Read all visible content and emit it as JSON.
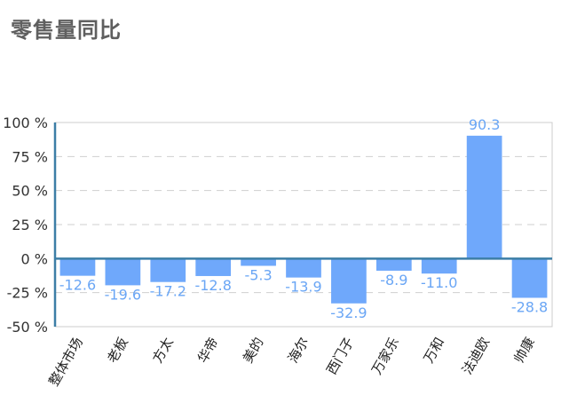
{
  "title": "零售量同比",
  "chart_data": {
    "type": "bar",
    "title": "零售量同比",
    "xlabel": "",
    "ylabel": "",
    "categories": [
      "整体市场",
      "老板",
      "方太",
      "华帝",
      "美的",
      "海尔",
      "西门子",
      "万家乐",
      "万和",
      "法迪欧",
      "帅康"
    ],
    "values": [
      -12.6,
      -19.6,
      -17.2,
      -12.8,
      -5.3,
      -13.9,
      -32.9,
      -8.9,
      -11.0,
      90.3,
      -28.8
    ],
    "value_labels": [
      "-12.6",
      "-19.6",
      "-17.2",
      "-12.8",
      "-5.3",
      "-13.9",
      "-32.9",
      "-8.9",
      "-11.0",
      "90.3",
      "-28.8"
    ],
    "ylim": [
      -50,
      100
    ],
    "yticks": [
      -50,
      -25,
      0,
      25,
      50,
      75,
      100
    ],
    "ytick_labels": [
      "-50 %",
      "-25 %",
      "0 %",
      "25 %",
      "50 %",
      "75 %",
      "100 %"
    ],
    "bar_color": "#6fa8fb",
    "label_color": "#6aa6f5",
    "axis_color": "#3c7ea6",
    "grid": true,
    "legend": "none"
  }
}
